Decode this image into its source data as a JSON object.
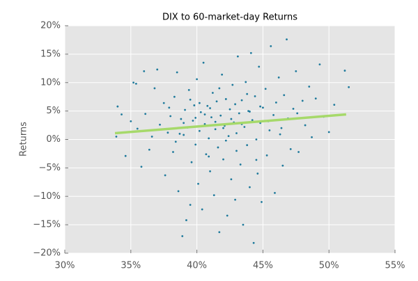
{
  "chart_data": {
    "type": "scatter",
    "title": "DIX to 60-market-day Returns",
    "y_label": "Returns",
    "x": [
      33.9,
      34.0,
      34.3,
      34.6,
      35.0,
      35.4,
      35.5,
      35.8,
      36.1,
      36.4,
      36.6,
      36.8,
      37.0,
      37.2,
      37.5,
      37.6,
      37.8,
      38.0,
      38.2,
      38.3,
      38.5,
      38.6,
      38.8,
      38.9,
      39.0,
      39.1,
      39.2,
      39.3,
      39.4,
      39.5,
      39.6,
      39.7,
      39.8,
      39.9,
      40.0,
      40.1,
      40.2,
      40.3,
      40.4,
      40.5,
      40.6,
      40.7,
      40.8,
      40.9,
      41.0,
      41.1,
      41.2,
      41.3,
      41.4,
      41.5,
      41.6,
      41.7,
      41.8,
      41.9,
      42.0,
      42.1,
      42.2,
      42.3,
      42.4,
      42.5,
      42.6,
      42.7,
      42.8,
      42.9,
      43.0,
      43.1,
      43.2,
      43.3,
      43.4,
      43.5,
      43.6,
      43.7,
      43.8,
      43.9,
      44.0,
      44.1,
      44.2,
      44.3,
      44.4,
      44.5,
      44.6,
      44.7,
      44.8,
      44.9,
      45.0,
      45.2,
      45.3,
      45.5,
      45.6,
      45.8,
      45.9,
      46.0,
      46.2,
      46.3,
      46.5,
      46.6,
      46.8,
      46.9,
      47.1,
      47.3,
      47.5,
      47.7,
      48.0,
      48.2,
      48.5,
      48.7,
      49.0,
      49.3,
      49.6,
      50.0,
      50.4,
      51.2,
      51.5,
      36.0,
      35.2,
      38.4,
      39.9,
      40.6,
      41.4,
      42.0,
      42.6,
      43.4,
      44.0,
      44.8,
      45.4,
      40.2,
      41.0,
      42.2,
      43.0,
      39.0,
      37.9,
      46.4,
      47.6,
      43.8,
      41.7,
      40.9,
      44.5,
      39.5,
      42.9,
      38.7
    ],
    "series": [
      {
        "color": "#1f7a9c",
        "values": [
          0.5,
          5.8,
          4.4,
          -2.9,
          3.2,
          9.8,
          1.9,
          -4.8,
          4.5,
          -1.8,
          0.5,
          9.0,
          12.3,
          2.6,
          6.4,
          -6.3,
          1.2,
          4.1,
          -2.2,
          7.5,
          11.8,
          -9.1,
          3.6,
          -17.0,
          0.8,
          5.2,
          -14.2,
          2.1,
          8.7,
          -11.5,
          -4.0,
          3.3,
          6.0,
          -0.9,
          10.6,
          -7.8,
          1.5,
          4.8,
          -12.3,
          13.5,
          2.7,
          -2.6,
          5.9,
          0.2,
          -5.6,
          3.9,
          8.2,
          -9.8,
          1.8,
          6.7,
          -1.4,
          -16.3,
          4.2,
          11.4,
          -3.5,
          2.4,
          7.1,
          -13.4,
          0.6,
          5.3,
          -7.0,
          9.6,
          3.0,
          -10.6,
          1.1,
          14.6,
          4.6,
          -4.4,
          6.9,
          -15.0,
          2.2,
          10.1,
          -1.0,
          5.0,
          -8.4,
          15.2,
          3.4,
          -18.2,
          7.6,
          0.0,
          -6.0,
          12.8,
          2.9,
          -11.0,
          5.6,
          8.9,
          -2.8,
          1.6,
          16.4,
          4.3,
          -9.4,
          6.5,
          10.9,
          0.9,
          -4.6,
          7.8,
          17.6,
          3.7,
          -1.7,
          5.4,
          12.0,
          -2.2,
          6.8,
          2.5,
          9.3,
          0.4,
          7.2,
          13.2,
          4.0,
          1.3,
          6.1,
          12.1,
          9.2,
          12.0,
          10.0,
          -0.4,
          3.8,
          4.4,
          3.1,
          2.0,
          3.6,
          2.7,
          4.9,
          5.8,
          3.2,
          6.4,
          5.5,
          -0.2,
          -2.0,
          2.9,
          5.6,
          2.0,
          4.6,
          8.0,
          9.0,
          -3.0,
          -3.6,
          7.0,
          6.2,
          1.0
        ]
      }
    ],
    "trend_line": {
      "x": [
        33.8,
        51.3
      ],
      "values": [
        1.1,
        4.4
      ],
      "color": "#a6d96a"
    },
    "xlim": [
      30,
      55
    ],
    "ylim": [
      -20,
      20
    ],
    "xticks": [
      {
        "value": 30,
        "label": "30%"
      },
      {
        "value": 35,
        "label": "35%"
      },
      {
        "value": 40,
        "label": "40%"
      },
      {
        "value": 45,
        "label": "45%"
      },
      {
        "value": 50,
        "label": "50%"
      },
      {
        "value": 55,
        "label": "55%"
      }
    ],
    "yticks": [
      {
        "value": -20,
        "label": "−20%"
      },
      {
        "value": -15,
        "label": "−15%"
      },
      {
        "value": -10,
        "label": "−10%"
      },
      {
        "value": -5,
        "label": "−5%"
      },
      {
        "value": 0,
        "label": "0%"
      },
      {
        "value": 5,
        "label": "5%"
      },
      {
        "value": 10,
        "label": "10%"
      },
      {
        "value": 15,
        "label": "15%"
      },
      {
        "value": 20,
        "label": "20%"
      }
    ],
    "grid": true
  }
}
